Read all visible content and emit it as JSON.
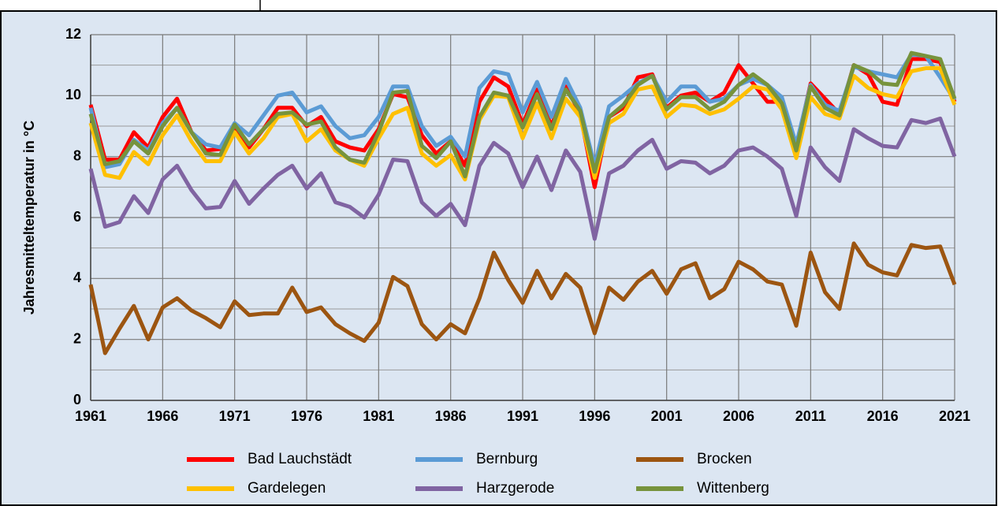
{
  "chart_data": {
    "type": "line",
    "y_label": "Jahresmitteltemperatur  in °C",
    "x": [
      1961,
      1962,
      1963,
      1964,
      1965,
      1966,
      1967,
      1968,
      1969,
      1970,
      1971,
      1972,
      1973,
      1974,
      1975,
      1976,
      1977,
      1978,
      1979,
      1980,
      1981,
      1982,
      1983,
      1984,
      1985,
      1986,
      1987,
      1988,
      1989,
      1990,
      1991,
      1992,
      1993,
      1994,
      1995,
      1996,
      1997,
      1998,
      1999,
      2000,
      2001,
      2002,
      2003,
      2004,
      2005,
      2006,
      2007,
      2008,
      2009,
      2010,
      2011,
      2012,
      2013,
      2014,
      2015,
      2016,
      2017,
      2018,
      2019,
      2020,
      2021
    ],
    "xlim": [
      1961,
      2021
    ],
    "xticks": [
      1961,
      1966,
      1971,
      1976,
      1981,
      1986,
      1991,
      1996,
      2001,
      2006,
      2011,
      2016,
      2021
    ],
    "ylim": [
      0,
      12
    ],
    "yticks": [
      0,
      2,
      4,
      6,
      8,
      10,
      12
    ],
    "yminorticks": [
      1,
      3,
      5,
      7,
      9,
      11
    ],
    "grid": true,
    "legend": "bottom",
    "series": [
      {
        "name": "Bad Lauchstädt",
        "color": "#ff0000",
        "values": [
          9.7,
          7.9,
          7.9,
          8.8,
          8.3,
          9.3,
          9.9,
          8.8,
          8.2,
          8.25,
          9.0,
          8.3,
          8.9,
          9.6,
          9.6,
          9.0,
          9.3,
          8.5,
          8.3,
          8.2,
          8.9,
          10.05,
          9.95,
          8.7,
          8.1,
          8.5,
          7.7,
          9.8,
          10.6,
          10.3,
          9.05,
          10.2,
          9.0,
          10.3,
          9.4,
          7.0,
          9.3,
          9.6,
          10.6,
          10.7,
          9.6,
          10.0,
          10.1,
          9.8,
          10.1,
          11.0,
          10.4,
          9.8,
          9.8,
          8.3,
          10.4,
          9.9,
          9.4,
          11.0,
          10.7,
          9.8,
          9.7,
          11.2,
          11.2,
          11.1,
          9.8
        ]
      },
      {
        "name": "Bernburg",
        "color": "#5b9bd5",
        "values": [
          9.6,
          7.65,
          7.75,
          8.55,
          8.2,
          9.1,
          9.6,
          8.8,
          8.4,
          8.3,
          9.1,
          8.7,
          9.35,
          10.0,
          10.1,
          9.45,
          9.65,
          9.0,
          8.6,
          8.7,
          9.3,
          10.3,
          10.3,
          9.0,
          8.35,
          8.65,
          8.0,
          10.25,
          10.8,
          10.7,
          9.45,
          10.45,
          9.3,
          10.55,
          9.6,
          7.7,
          9.65,
          10.0,
          10.4,
          10.65,
          9.8,
          10.3,
          10.3,
          9.8,
          9.9,
          10.35,
          10.55,
          10.35,
          9.95,
          8.4,
          10.35,
          9.7,
          9.5,
          10.95,
          10.8,
          10.7,
          10.6,
          11.35,
          11.3,
          10.6,
          9.85
        ]
      },
      {
        "name": "Brocken",
        "color": "#9c5511",
        "values": [
          3.8,
          1.55,
          2.35,
          3.1,
          2.0,
          3.05,
          3.35,
          2.95,
          2.7,
          2.4,
          3.25,
          2.8,
          2.85,
          2.85,
          3.7,
          2.9,
          3.05,
          2.5,
          2.2,
          1.95,
          2.55,
          4.05,
          3.75,
          2.5,
          2.0,
          2.5,
          2.2,
          3.35,
          4.85,
          3.95,
          3.2,
          4.25,
          3.35,
          4.15,
          3.7,
          2.2,
          3.7,
          3.3,
          3.9,
          4.25,
          3.5,
          4.3,
          4.5,
          3.35,
          3.65,
          4.55,
          4.3,
          3.9,
          3.8,
          2.45,
          4.85,
          3.55,
          3.0,
          5.15,
          4.45,
          4.2,
          4.1,
          5.1,
          5.0,
          5.05,
          3.8
        ]
      },
      {
        "name": "Gardelegen",
        "color": "#ffc000",
        "values": [
          9.1,
          7.4,
          7.3,
          8.15,
          7.75,
          8.7,
          9.35,
          8.5,
          7.85,
          7.85,
          8.8,
          8.1,
          8.6,
          9.3,
          9.4,
          8.5,
          8.9,
          8.2,
          7.9,
          7.7,
          8.6,
          9.4,
          9.6,
          8.1,
          7.7,
          8.05,
          7.25,
          9.2,
          10.0,
          9.95,
          8.6,
          9.75,
          8.6,
          9.9,
          9.3,
          7.3,
          9.1,
          9.4,
          10.2,
          10.3,
          9.3,
          9.7,
          9.65,
          9.4,
          9.55,
          9.9,
          10.3,
          10.2,
          9.55,
          7.95,
          9.95,
          9.4,
          9.25,
          10.65,
          10.25,
          10.05,
          9.95,
          10.8,
          10.9,
          10.9,
          9.7
        ]
      },
      {
        "name": "Harzgerode",
        "color": "#8064a2",
        "values": [
          7.6,
          5.7,
          5.85,
          6.7,
          6.15,
          7.25,
          7.7,
          6.9,
          6.3,
          6.35,
          7.2,
          6.45,
          6.95,
          7.4,
          7.7,
          6.95,
          7.45,
          6.5,
          6.35,
          6.0,
          6.75,
          7.9,
          7.85,
          6.5,
          6.05,
          6.45,
          5.75,
          7.7,
          8.45,
          8.1,
          7.0,
          8.0,
          6.9,
          8.2,
          7.5,
          5.3,
          7.45,
          7.7,
          8.2,
          8.55,
          7.6,
          7.85,
          7.8,
          7.45,
          7.7,
          8.2,
          8.3,
          8.0,
          7.6,
          6.05,
          8.3,
          7.65,
          7.2,
          8.9,
          8.6,
          8.35,
          8.3,
          9.2,
          9.1,
          9.25,
          8.0
        ]
      },
      {
        "name": "Wittenberg",
        "color": "#77933c",
        "values": [
          9.4,
          7.75,
          7.85,
          8.5,
          8.1,
          9.0,
          9.6,
          8.8,
          8.1,
          8.05,
          9.05,
          8.4,
          8.9,
          9.4,
          9.45,
          9.05,
          9.15,
          8.3,
          7.9,
          7.8,
          8.8,
          10.1,
          10.15,
          8.35,
          7.95,
          8.5,
          7.35,
          9.3,
          10.1,
          10.0,
          8.95,
          10.05,
          8.9,
          10.2,
          9.5,
          7.5,
          9.3,
          9.7,
          10.35,
          10.65,
          9.55,
          9.95,
          9.95,
          9.55,
          9.8,
          10.35,
          10.7,
          10.35,
          9.75,
          8.2,
          10.3,
          9.6,
          9.35,
          11.0,
          10.8,
          10.4,
          10.35,
          11.4,
          11.3,
          11.2,
          9.9
        ]
      }
    ]
  }
}
